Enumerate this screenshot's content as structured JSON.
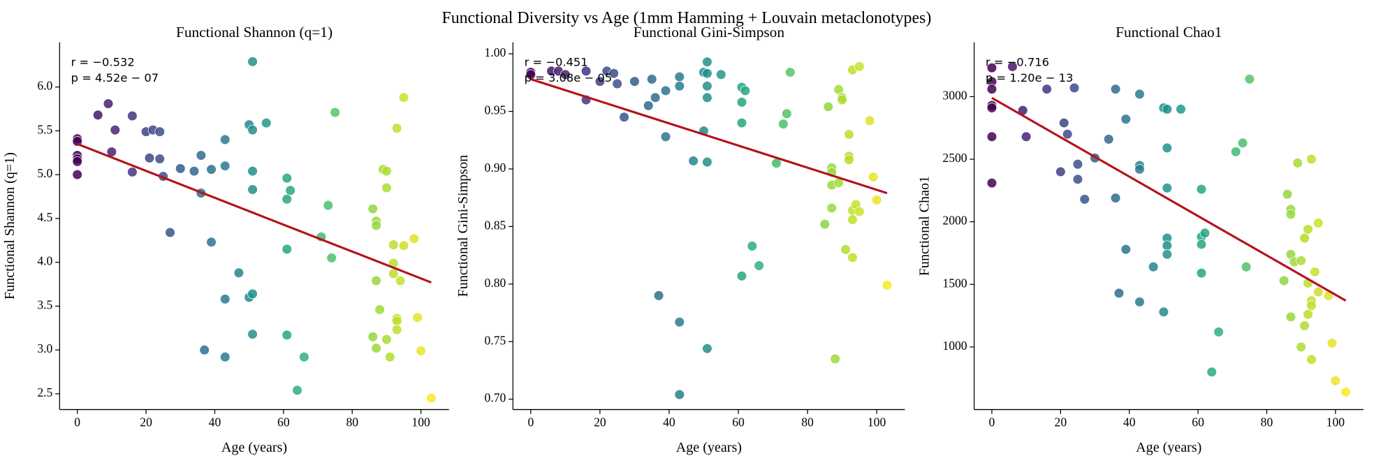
{
  "title": "Functional Diversity vs Age (1mm Hamming + Louvain metaclonotypes)",
  "chart_data": [
    {
      "type": "scatter",
      "title": "Functional Shannon (q=1)",
      "xlabel": "Age (years)",
      "ylabel": "Functional Shannon (q=1)",
      "annotations": [
        "r = −0.532",
        "p = 4.52e − 07"
      ],
      "colormap": "viridis",
      "xlim": [
        -5.15,
        108.15
      ],
      "ylim": [
        2.32,
        6.51
      ],
      "xticks": [
        0,
        20,
        40,
        60,
        80,
        100
      ],
      "yticks": [
        2.5,
        {
          "value": 3,
          "label": "3.0"
        },
        3.5,
        {
          "value": 4,
          "label": "4.0"
        },
        4.5,
        {
          "value": 5,
          "label": "5.0"
        },
        5.5,
        {
          "value": 6,
          "label": "6.0"
        }
      ],
      "x": [
        0,
        0,
        0,
        0,
        0,
        0,
        6,
        9,
        10,
        11,
        16,
        16,
        20,
        21,
        22,
        24,
        24,
        25,
        27,
        30,
        34,
        36,
        36,
        37,
        39,
        39,
        43,
        43,
        43,
        43,
        47,
        50,
        50,
        51,
        51,
        51,
        51,
        51,
        51,
        55,
        61,
        61,
        61,
        61,
        62,
        64,
        66,
        71,
        73,
        74,
        75,
        86,
        86,
        87,
        87,
        87,
        87,
        88,
        89,
        90,
        90,
        90,
        91,
        92,
        92,
        92,
        93,
        93,
        93,
        93,
        94,
        95,
        95,
        98,
        99,
        100,
        103
      ],
      "values": [
        5.41,
        5.38,
        5.22,
        5.18,
        5.15,
        5.0,
        5.68,
        5.81,
        5.26,
        5.51,
        5.67,
        5.03,
        5.49,
        5.19,
        5.51,
        5.49,
        5.18,
        4.98,
        4.34,
        5.07,
        5.04,
        5.22,
        4.79,
        3.0,
        4.23,
        5.06,
        5.4,
        5.1,
        3.58,
        2.92,
        3.88,
        5.57,
        3.6,
        6.29,
        5.51,
        5.04,
        4.83,
        3.64,
        3.18,
        5.59,
        4.96,
        4.72,
        4.15,
        3.17,
        4.82,
        2.54,
        2.92,
        4.29,
        4.65,
        4.05,
        5.71,
        4.61,
        3.15,
        4.47,
        4.42,
        3.79,
        3.02,
        3.46,
        5.06,
        5.04,
        4.85,
        3.12,
        2.92,
        4.2,
        3.99,
        3.87,
        5.53,
        3.36,
        3.33,
        3.23,
        3.79,
        5.88,
        4.19,
        4.27,
        3.37,
        2.99,
        2.45
      ],
      "fit": {
        "color": "#b5121b",
        "x": [
          0,
          103
        ],
        "values": [
          5.35,
          3.77
        ]
      }
    },
    {
      "type": "scatter",
      "title": "Functional Gini-Simpson",
      "xlabel": "Age (years)",
      "ylabel": "Functional Gini-Simpson",
      "annotations": [
        "r = −0.451",
        "p = 3.08e − 05"
      ],
      "colormap": "viridis",
      "xlim": [
        -5.15,
        108.15
      ],
      "ylim": [
        0.691,
        1.01
      ],
      "xticks": [
        0,
        20,
        40,
        60,
        80,
        100
      ],
      "yticks": [
        {
          "value": 0.7,
          "label": "0.70"
        },
        0.75,
        {
          "value": 0.8,
          "label": "0.80"
        },
        0.85,
        {
          "value": 0.9,
          "label": "0.90"
        },
        0.95,
        {
          "value": 1,
          "label": "1.00"
        }
      ],
      "x": [
        0,
        0,
        6,
        8,
        10,
        16,
        16,
        20,
        22,
        24,
        25,
        27,
        30,
        34,
        35,
        36,
        37,
        39,
        39,
        43,
        43,
        43,
        43,
        47,
        50,
        50,
        51,
        51,
        51,
        51,
        51,
        51,
        55,
        61,
        61,
        61,
        61,
        62,
        64,
        66,
        71,
        73,
        74,
        75,
        85,
        86,
        87,
        87,
        87,
        87,
        88,
        89,
        89,
        90,
        90,
        91,
        92,
        92,
        92,
        93,
        93,
        93,
        93,
        94,
        95,
        95,
        98,
        99,
        100,
        103
      ],
      "values": [
        0.984,
        0.982,
        0.985,
        0.985,
        0.982,
        0.96,
        0.985,
        0.976,
        0.985,
        0.983,
        0.974,
        0.945,
        0.976,
        0.955,
        0.978,
        0.962,
        0.79,
        0.968,
        0.928,
        0.98,
        0.972,
        0.767,
        0.704,
        0.907,
        0.984,
        0.933,
        0.993,
        0.983,
        0.972,
        0.962,
        0.906,
        0.744,
        0.982,
        0.971,
        0.958,
        0.94,
        0.807,
        0.968,
        0.833,
        0.816,
        0.905,
        0.939,
        0.948,
        0.984,
        0.852,
        0.954,
        0.901,
        0.897,
        0.886,
        0.866,
        0.735,
        0.969,
        0.888,
        0.962,
        0.96,
        0.83,
        0.93,
        0.911,
        0.908,
        0.986,
        0.864,
        0.856,
        0.823,
        0.869,
        0.989,
        0.863,
        0.942,
        0.893,
        0.873,
        0.799
      ],
      "fit": {
        "color": "#b5121b",
        "x": [
          0,
          103
        ],
        "values": [
          0.978,
          0.879
        ]
      }
    },
    {
      "type": "scatter",
      "title": "Functional Chao1",
      "xlabel": "Age (years)",
      "ylabel": "Functional Chao1",
      "annotations": [
        "r = −0.716",
        "p = 1.20e − 13"
      ],
      "colormap": "viridis",
      "xlim": [
        -5.15,
        108.15
      ],
      "ylim": [
        500,
        3434
      ],
      "xticks": [
        0,
        20,
        40,
        60,
        80,
        100
      ],
      "yticks": [
        1000,
        1500,
        2000,
        2500,
        3000
      ],
      "x": [
        0,
        0,
        0,
        0,
        0,
        0,
        0,
        6,
        9,
        10,
        16,
        20,
        21,
        22,
        24,
        25,
        25,
        27,
        30,
        34,
        36,
        36,
        37,
        39,
        39,
        43,
        43,
        43,
        43,
        47,
        50,
        50,
        51,
        51,
        51,
        51,
        51,
        51,
        55,
        61,
        61,
        61,
        61,
        62,
        64,
        66,
        71,
        73,
        74,
        75,
        85,
        86,
        87,
        87,
        87,
        87,
        88,
        89,
        90,
        90,
        91,
        91,
        92,
        92,
        92,
        93,
        93,
        93,
        93,
        94,
        95,
        95,
        98,
        99,
        100,
        103
      ],
      "values": [
        3230,
        3120,
        3060,
        2930,
        2910,
        2680,
        2310,
        3240,
        2890,
        2680,
        3060,
        2400,
        2790,
        2700,
        3070,
        2460,
        2340,
        2180,
        2510,
        2660,
        3060,
        2190,
        1430,
        2820,
        1780,
        3020,
        2450,
        2420,
        1360,
        1640,
        2910,
        1280,
        2900,
        2590,
        2270,
        1870,
        1810,
        1740,
        2900,
        2260,
        1880,
        1820,
        1590,
        1910,
        800,
        1120,
        2560,
        2630,
        1640,
        3140,
        1530,
        2220,
        2100,
        2060,
        1740,
        1240,
        1680,
        2470,
        1690,
        1000,
        1870,
        1170,
        1940,
        1510,
        1260,
        2500,
        1370,
        1330,
        900,
        1600,
        1990,
        1440,
        1410,
        1030,
        730,
        640
      ],
      "fit": {
        "color": "#b5121b",
        "x": [
          0,
          103
        ],
        "values": [
          2990,
          1370
        ]
      }
    }
  ]
}
